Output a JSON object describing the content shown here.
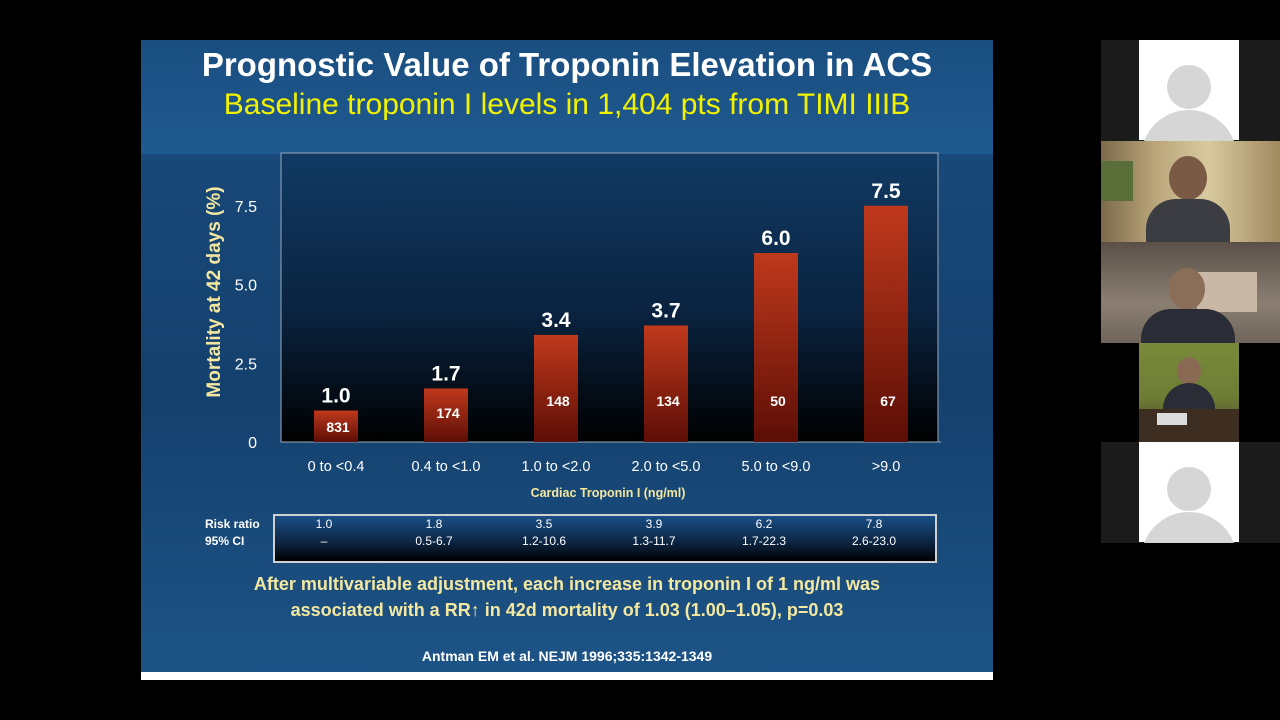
{
  "slide": {
    "title": "Prognostic Value of Troponin Elevation in ACS",
    "subtitle": "Baseline troponin I levels in 1,404 pts from TIMI IIIB",
    "footnote_line1": "After multivariable adjustment, each increase in troponin I of 1 ng/ml was",
    "footnote_line2": "associated with a RR↑ in 42d mortality of 1.03 (1.00–1.05), p=0.03",
    "citation": "Antman EM et al. NEJM 1996;335:1342-1349"
  },
  "chart_data": {
    "type": "bar",
    "ylabel": "Mortality at 42 days (%)",
    "xlabel": "Cardiac Troponin I (ng/ml)",
    "categories": [
      "0 to <0.4",
      "0.4 to <1.0",
      "1.0 to <2.0",
      "2.0 to <5.0",
      "5.0 to <9.0",
      ">9.0"
    ],
    "values": [
      1.0,
      1.7,
      3.4,
      3.7,
      6.0,
      7.5
    ],
    "value_labels": [
      "1.0",
      "1.7",
      "3.4",
      "3.7",
      "6.0",
      "7.5"
    ],
    "n_patients": [
      "831",
      "174",
      "148",
      "134",
      "50",
      "67"
    ],
    "yticks": [
      "0",
      "2.5",
      "5.0",
      "7.5"
    ],
    "ylim": [
      0,
      9
    ],
    "colors": {
      "bar_top": "#c0391c",
      "bar_bottom": "#5c0e06",
      "tick_text": "#ffffff"
    }
  },
  "risk_table": {
    "row1_label": "Risk ratio",
    "row2_label": "95% CI",
    "risk_ratio": [
      "1.0",
      "1.8",
      "3.5",
      "3.9",
      "6.2",
      "7.8"
    ],
    "ci": [
      "–",
      "0.5-6.7",
      "1.2-10.6",
      "1.3-11.7",
      "1.7-22.3",
      "2.6-23.0"
    ]
  },
  "participants": [
    {
      "type": "avatar",
      "icon": "user-avatar-icon"
    },
    {
      "type": "video",
      "icon": "participant-video"
    },
    {
      "type": "video",
      "icon": "participant-video"
    },
    {
      "type": "video",
      "icon": "participant-video"
    },
    {
      "type": "avatar",
      "icon": "user-avatar-icon"
    }
  ]
}
